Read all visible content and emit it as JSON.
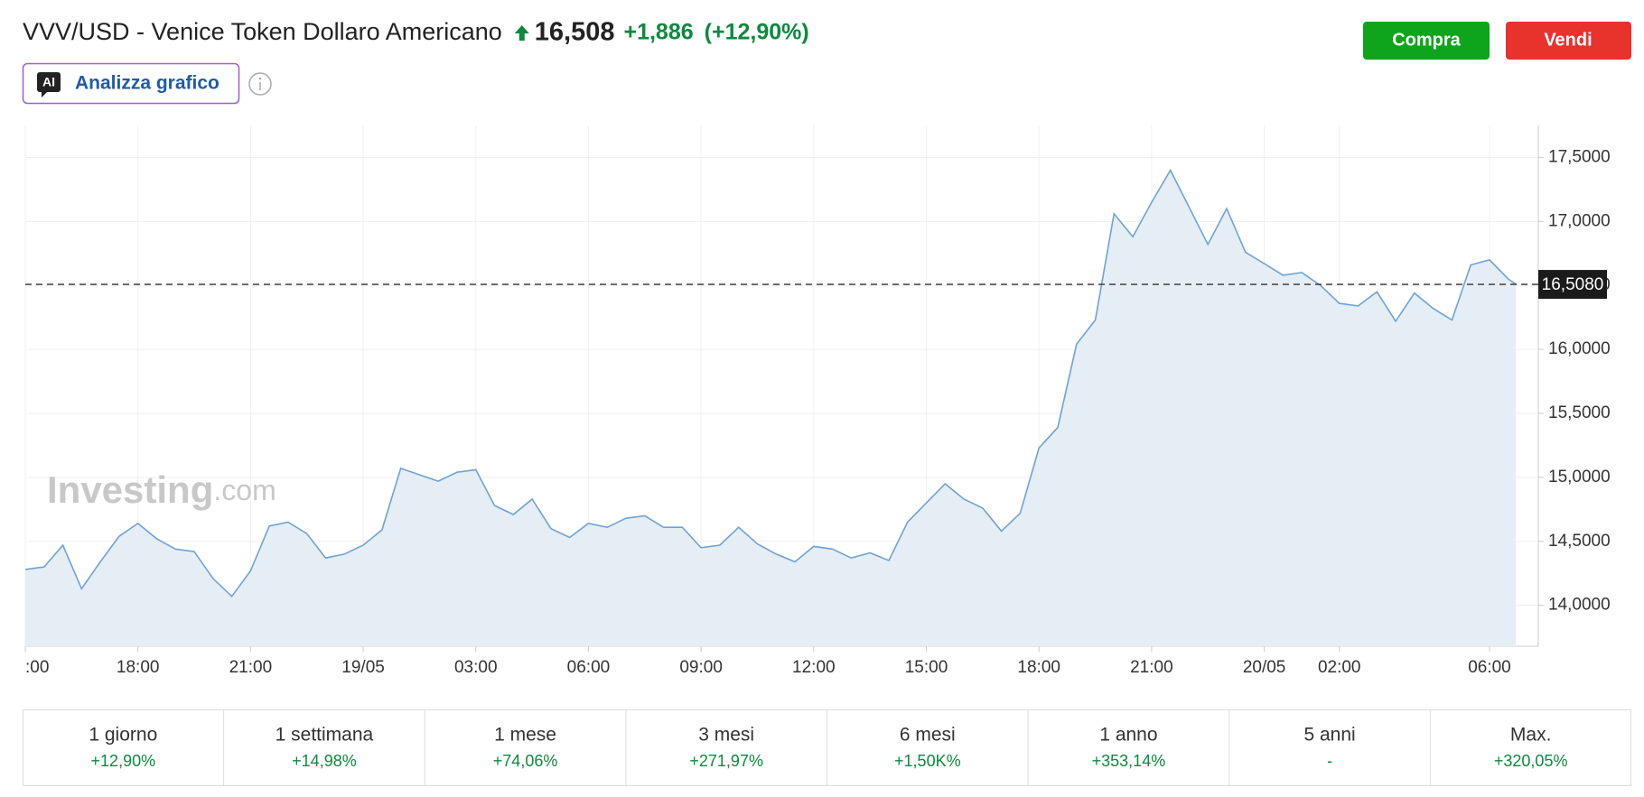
{
  "header": {
    "title": "VVV/USD - Venice Token Dollaro Americano",
    "price": "16,508",
    "change": "+1,886",
    "change_pct": "(+12,90%)",
    "buy": "Compra",
    "sell": "Vendi",
    "ai_badge": "AI",
    "ai_button": "Analizza grafico"
  },
  "watermark": {
    "brand": "Investing",
    "suffix": ".com"
  },
  "chart_data": {
    "type": "area",
    "grid": true,
    "xlim": [
      15,
      55.3
    ],
    "xticks": [
      {
        "value": 15,
        "label": ":00"
      },
      {
        "value": 18,
        "label": "18:00"
      },
      {
        "value": 21,
        "label": "21:00"
      },
      {
        "value": 24,
        "label": "19/05"
      },
      {
        "value": 27,
        "label": "03:00"
      },
      {
        "value": 30,
        "label": "06:00"
      },
      {
        "value": 33,
        "label": "09:00"
      },
      {
        "value": 36,
        "label": "12:00"
      },
      {
        "value": 39,
        "label": "15:00"
      },
      {
        "value": 42,
        "label": "18:00"
      },
      {
        "value": 45,
        "label": "21:00"
      },
      {
        "value": 48,
        "label": "20/05"
      },
      {
        "value": 50,
        "label": "02:00"
      },
      {
        "value": 54,
        "label": "06:00"
      }
    ],
    "ylim": [
      13.68,
      17.75
    ],
    "yticks": [
      {
        "value": 14,
        "label": "14,0000"
      },
      {
        "value": 14.5,
        "label": "14,5000"
      },
      {
        "value": 15,
        "label": "15,0000"
      },
      {
        "value": 15.5,
        "label": "15,5000"
      },
      {
        "value": 16,
        "label": "16,0000"
      },
      {
        "value": 16.5,
        "label": "16,5000"
      },
      {
        "value": 17,
        "label": "17,0000"
      },
      {
        "value": 17.5,
        "label": "17,5000"
      }
    ],
    "reference_line": {
      "value": 16.508,
      "label": "16,5080"
    },
    "x": [
      15,
      15.5,
      16,
      16.5,
      17,
      17.5,
      18,
      18.5,
      19,
      19.5,
      20,
      20.5,
      21,
      21.5,
      22,
      22.5,
      23,
      23.5,
      24,
      24.5,
      25,
      25.5,
      26,
      26.5,
      27,
      27.5,
      28,
      28.5,
      29,
      29.5,
      30,
      30.5,
      31,
      31.5,
      32,
      32.5,
      33,
      33.5,
      34,
      34.5,
      35,
      35.5,
      36,
      36.5,
      37,
      37.5,
      38,
      38.5,
      39,
      39.5,
      40,
      40.5,
      41,
      41.5,
      42,
      42.5,
      43,
      43.5,
      44,
      44.5,
      45,
      45.5,
      46,
      46.5,
      47,
      47.5,
      48,
      48.5,
      49,
      49.5,
      50,
      50.5,
      51,
      51.5,
      52,
      52.5,
      53,
      53.5,
      54,
      54.5,
      54.7
    ],
    "series": [
      {
        "color": "#6fa3d4",
        "fill": "#e5edf5",
        "values": [
          14.28,
          14.3,
          14.47,
          14.13,
          14.34,
          14.54,
          14.64,
          14.52,
          14.44,
          14.42,
          14.21,
          14.07,
          14.27,
          14.62,
          14.65,
          14.56,
          14.37,
          14.4,
          14.47,
          14.59,
          15.07,
          15.02,
          14.97,
          15.04,
          15.06,
          14.78,
          14.71,
          14.83,
          14.6,
          14.53,
          14.64,
          14.61,
          14.68,
          14.7,
          14.61,
          14.61,
          14.45,
          14.47,
          14.61,
          14.48,
          14.4,
          14.34,
          14.46,
          14.44,
          14.37,
          14.41,
          14.35,
          14.65,
          14.8,
          14.95,
          14.83,
          14.76,
          14.58,
          14.72,
          15.23,
          15.39,
          16.04,
          16.23,
          17.06,
          16.88,
          17.15,
          17.4,
          17.11,
          16.82,
          17.1,
          16.76,
          16.67,
          16.58,
          16.6,
          16.5,
          16.36,
          16.34,
          16.45,
          16.22,
          16.44,
          16.32,
          16.23,
          16.66,
          16.7,
          16.55,
          16.51
        ]
      }
    ]
  },
  "periods": [
    {
      "label": "1 giorno",
      "value": "+12,90%"
    },
    {
      "label": "1 settimana",
      "value": "+14,98%"
    },
    {
      "label": "1 mese",
      "value": "+74,06%"
    },
    {
      "label": "3 mesi",
      "value": "+271,97%"
    },
    {
      "label": "6 mesi",
      "value": "+1,50K%"
    },
    {
      "label": "1 anno",
      "value": "+353,14%"
    },
    {
      "label": "5 anni",
      "value": "-"
    },
    {
      "label": "Max.",
      "value": "+320,05%"
    }
  ]
}
